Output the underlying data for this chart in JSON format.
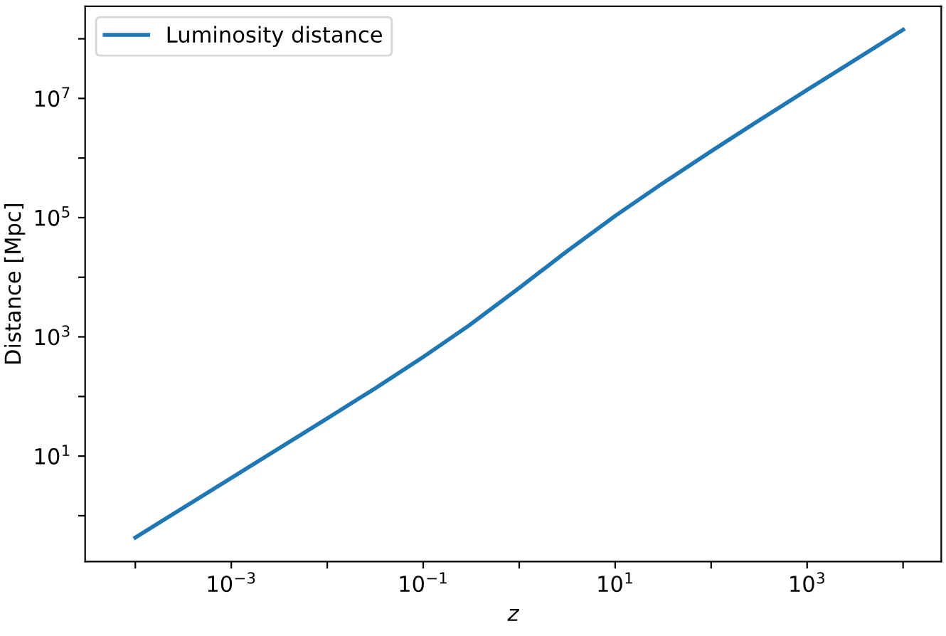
{
  "chart_data": {
    "type": "line",
    "xlabel": "z",
    "ylabel": "Distance [Mpc]",
    "log": "xy",
    "legend": "top left",
    "grid": false,
    "marker": "none",
    "line_style": "solid",
    "x": [
      0.0001,
      0.0003,
      0.001,
      0.003,
      0.01,
      0.03,
      0.1,
      0.3,
      1,
      3,
      10,
      30,
      100,
      300,
      1000,
      3000,
      10000
    ],
    "series": [
      {
        "name": "Luminosity distance",
        "color": "#1f77b4",
        "values": [
          0.43,
          1.29,
          4.3,
          12.9,
          43,
          130,
          460,
          1550,
          6600,
          25800,
          107000,
          360000,
          1300000,
          4060000,
          13900000,
          42000000,
          142000000
        ]
      }
    ],
    "xlim": [
      3e-05,
      25000.0
    ],
    "ylim": [
      0.17,
      350000000.0
    ],
    "xticks": [
      {
        "value": 0.0001,
        "label": null
      },
      {
        "value": 0.001,
        "label": "10$^{−3}$"
      },
      {
        "value": 0.01,
        "label": null
      },
      {
        "value": 0.1,
        "label": "10$^{−1}$"
      },
      {
        "value": 1,
        "label": null
      },
      {
        "value": 10,
        "label": "10$^{1}$"
      },
      {
        "value": 100,
        "label": null
      },
      {
        "value": 1000,
        "label": "10$^{3}$"
      },
      {
        "value": 10000,
        "label": null
      }
    ],
    "yticks": [
      {
        "value": 1,
        "label": null
      },
      {
        "value": 10,
        "label": "10$^{1}$"
      },
      {
        "value": 100,
        "label": null
      },
      {
        "value": 1000,
        "label": "10$^{3}$"
      },
      {
        "value": 10000,
        "label": null
      },
      {
        "value": 100000,
        "label": "10$^{5}$"
      },
      {
        "value": 1000000,
        "label": null
      },
      {
        "value": 10000000,
        "label": "10$^{7}$"
      },
      {
        "value": 100000000,
        "label": null
      }
    ]
  }
}
